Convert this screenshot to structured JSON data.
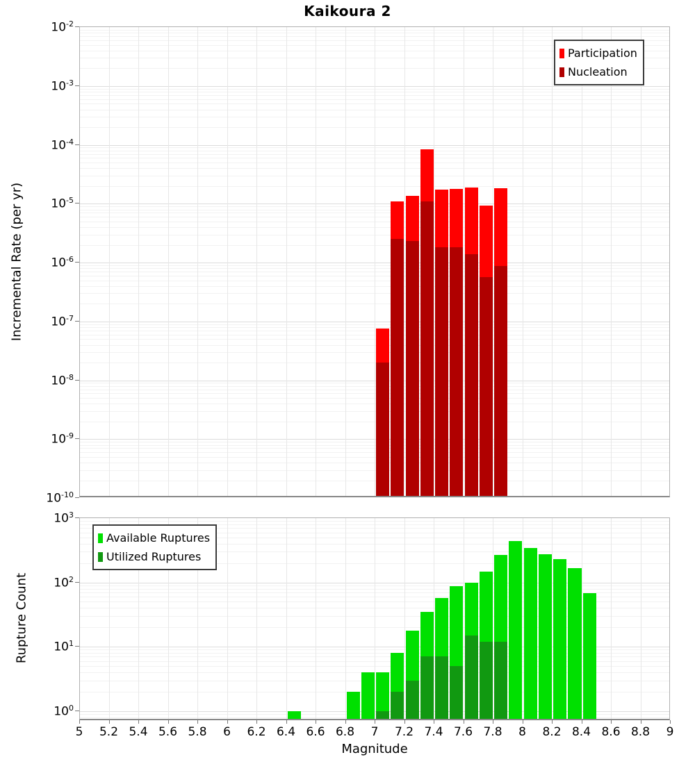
{
  "title": "Kaikoura 2",
  "axes": {
    "x": {
      "label": "Magnitude",
      "min": 5,
      "max": 9,
      "tick_step": 0.2,
      "tick_labels": [
        "5",
        "5.2",
        "5.4",
        "5.6",
        "5.8",
        "6",
        "6.2",
        "6.4",
        "6.6",
        "6.8",
        "7",
        "7.2",
        "7.4",
        "7.6",
        "7.8",
        "8",
        "8.2",
        "8.4",
        "8.6",
        "8.8",
        "9"
      ]
    },
    "top_y": {
      "label": "Incremental Rate (per yr)",
      "tick_exponents": [
        -2,
        -3,
        -4,
        -5,
        -6,
        -7,
        -8,
        -9,
        -10
      ]
    },
    "bottom_y": {
      "label": "Rupture Count",
      "tick_exponents": [
        3,
        2,
        1,
        0
      ]
    }
  },
  "colors": {
    "participation": "#ff0000",
    "nucleation": "#b00000",
    "available": "#00e000",
    "utilized": "#119911",
    "grid_major": "#dcdcdc",
    "grid_minor": "#f2f2f2"
  },
  "chart_data": [
    {
      "type": "bar",
      "panel": "top",
      "ylabel": "Incremental Rate (per yr)",
      "xlabel": "Magnitude",
      "yscale": "log",
      "ylim": [
        1e-10,
        0.01
      ],
      "xlim": [
        5,
        9
      ],
      "bin_width": 0.1,
      "grid": true,
      "legend_position": "top-right",
      "series": [
        {
          "name": "Participation",
          "color": "#ff0000",
          "bins": [
            7.0,
            7.1,
            7.2,
            7.3,
            7.4,
            7.5,
            7.6,
            7.7,
            7.8
          ],
          "values": [
            7.5e-08,
            1.1e-05,
            1.35e-05,
            8.3e-05,
            1.75e-05,
            1.8e-05,
            1.9e-05,
            9.3e-06,
            1.85e-05
          ]
        },
        {
          "name": "Nucleation",
          "color": "#b00000",
          "bins": [
            7.0,
            7.1,
            7.2,
            7.3,
            7.4,
            7.5,
            7.6,
            7.7,
            7.8
          ],
          "values": [
            2e-08,
            2.5e-06,
            2.3e-06,
            1.1e-05,
            1.8e-06,
            1.8e-06,
            1.4e-06,
            5.6e-07,
            8.7e-07
          ]
        }
      ]
    },
    {
      "type": "bar",
      "panel": "bottom",
      "ylabel": "Rupture Count",
      "xlabel": "Magnitude",
      "yscale": "log",
      "ylim": [
        1,
        1000
      ],
      "xlim": [
        5,
        9
      ],
      "bin_width": 0.1,
      "grid": true,
      "legend_position": "top-left",
      "series": [
        {
          "name": "Available Ruptures",
          "color": "#00e000",
          "bins": [
            6.4,
            6.8,
            6.9,
            7.0,
            7.1,
            7.2,
            7.3,
            7.4,
            7.5,
            7.6,
            7.7,
            7.8,
            7.9,
            8.0,
            8.1,
            8.2,
            8.3,
            8.4
          ],
          "values": [
            1,
            2,
            4,
            4,
            8,
            18,
            35,
            57,
            88,
            100,
            148,
            265,
            437,
            340,
            272,
            230,
            166,
            69
          ]
        },
        {
          "name": "Utilized Ruptures",
          "color": "#119911",
          "bins": [
            7.0,
            7.1,
            7.2,
            7.3,
            7.4,
            7.5,
            7.6,
            7.7,
            7.8
          ],
          "values": [
            1,
            2,
            3,
            7,
            7,
            5,
            15,
            12,
            12
          ]
        }
      ]
    }
  ]
}
